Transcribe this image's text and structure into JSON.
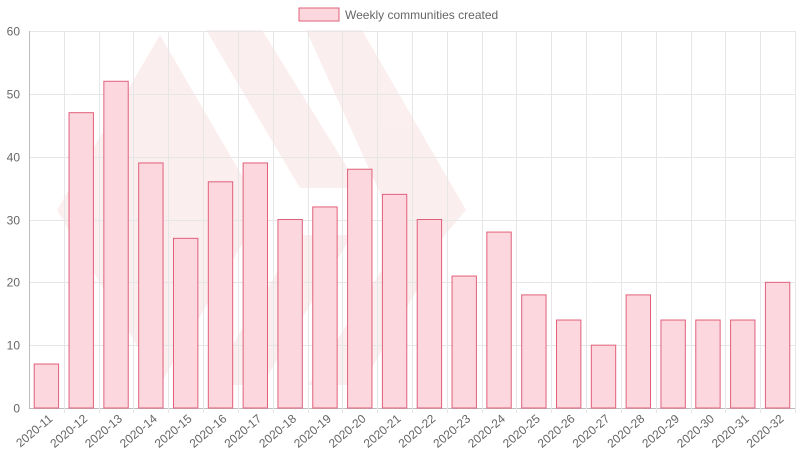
{
  "chart_data": {
    "type": "bar",
    "categories": [
      "2020-11",
      "2020-12",
      "2020-13",
      "2020-14",
      "2020-15",
      "2020-16",
      "2020-17",
      "2020-18",
      "2020-19",
      "2020-20",
      "2020-21",
      "2020-22",
      "2020-23",
      "2020-24",
      "2020-25",
      "2020-26",
      "2020-27",
      "2020-28",
      "2020-29",
      "2020-30",
      "2020-31",
      "2020-32"
    ],
    "series": [
      {
        "name": "Weekly communities created",
        "values": [
          7,
          47,
          52,
          39,
          27,
          36,
          39,
          30,
          32,
          38,
          34,
          30,
          21,
          28,
          18,
          14,
          10,
          18,
          14,
          14,
          14,
          20
        ]
      }
    ],
    "ylim": [
      0,
      60
    ],
    "yticks": [
      0,
      10,
      20,
      30,
      40,
      50,
      60
    ],
    "grid": true,
    "legend_position": "top-center",
    "colors": {
      "bar_fill": "#fcd7de",
      "bar_stroke": "#e0607a",
      "grid": "#e6e6e6",
      "axis": "#bdbdbd",
      "watermark": "#f3c9cc"
    }
  }
}
